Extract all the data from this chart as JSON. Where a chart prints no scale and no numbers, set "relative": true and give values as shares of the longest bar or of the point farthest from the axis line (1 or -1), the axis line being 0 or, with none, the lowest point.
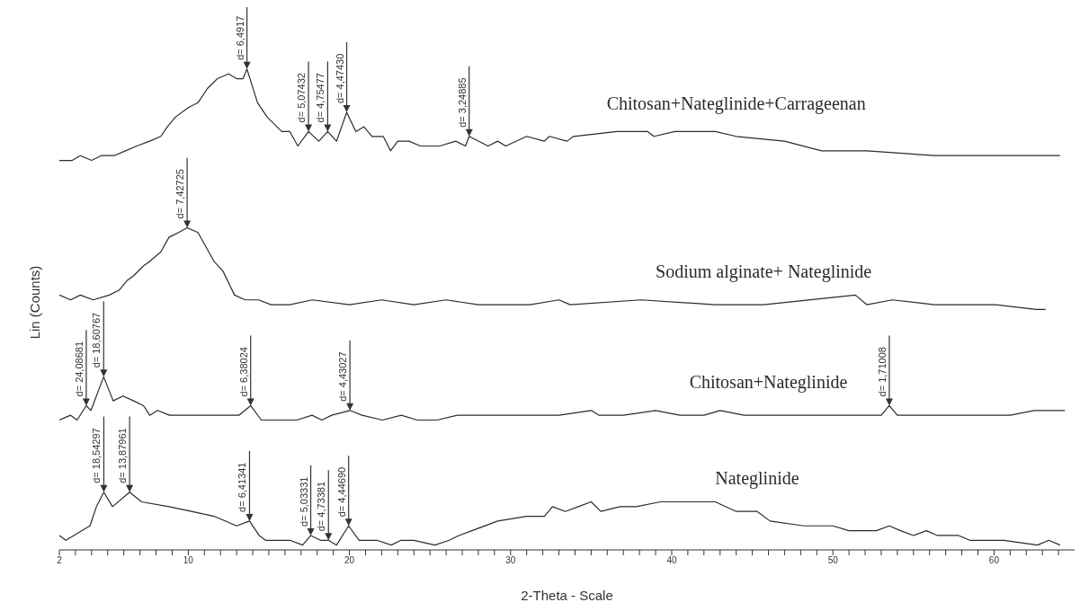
{
  "chart_data": {
    "type": "line",
    "relative": true,
    "xlabel": "2-Theta - Scale",
    "ylabel": "Lin (Counts)",
    "xlim": [
      2,
      65
    ],
    "xticks": [
      2,
      {
        "value": 3,
        "label": null
      },
      {
        "value": 4,
        "label": null
      },
      {
        "value": 5,
        "label": null
      },
      {
        "value": 6,
        "label": null
      },
      {
        "value": 7,
        "label": null
      },
      {
        "value": 8,
        "label": null
      },
      {
        "value": 9,
        "label": null
      },
      10,
      {
        "value": 11,
        "label": null
      },
      {
        "value": 12,
        "label": null
      },
      {
        "value": 13,
        "label": null
      },
      {
        "value": 14,
        "label": null
      },
      {
        "value": 15,
        "label": null
      },
      {
        "value": 16,
        "label": null
      },
      {
        "value": 17,
        "label": null
      },
      {
        "value": 18,
        "label": null
      },
      {
        "value": 19,
        "label": null
      },
      20,
      {
        "value": 21,
        "label": null
      },
      {
        "value": 22,
        "label": null
      },
      {
        "value": 23,
        "label": null
      },
      {
        "value": 24,
        "label": null
      },
      {
        "value": 25,
        "label": null
      },
      {
        "value": 26,
        "label": null
      },
      {
        "value": 27,
        "label": null
      },
      {
        "value": 28,
        "label": null
      },
      {
        "value": 29,
        "label": null
      },
      30,
      {
        "value": 31,
        "label": null
      },
      {
        "value": 32,
        "label": null
      },
      {
        "value": 33,
        "label": null
      },
      {
        "value": 34,
        "label": null
      },
      {
        "value": 35,
        "label": null
      },
      {
        "value": 36,
        "label": null
      },
      {
        "value": 37,
        "label": null
      },
      {
        "value": 38,
        "label": null
      },
      {
        "value": 39,
        "label": null
      },
      40,
      {
        "value": 41,
        "label": null
      },
      {
        "value": 42,
        "label": null
      },
      {
        "value": 43,
        "label": null
      },
      {
        "value": 44,
        "label": null
      },
      {
        "value": 45,
        "label": null
      },
      {
        "value": 46,
        "label": null
      },
      {
        "value": 47,
        "label": null
      },
      {
        "value": 48,
        "label": null
      },
      {
        "value": 49,
        "label": null
      },
      50,
      {
        "value": 51,
        "label": null
      },
      {
        "value": 52,
        "label": null
      },
      {
        "value": 53,
        "label": null
      },
      {
        "value": 54,
        "label": null
      },
      {
        "value": 55,
        "label": null
      },
      {
        "value": 56,
        "label": null
      },
      {
        "value": 57,
        "label": null
      },
      {
        "value": 58,
        "label": null
      },
      {
        "value": 59,
        "label": null
      },
      60,
      {
        "value": 61,
        "label": null
      },
      {
        "value": 62,
        "label": null
      },
      {
        "value": 63,
        "label": null
      },
      {
        "value": 64,
        "label": null
      }
    ],
    "series": [
      {
        "name": "Chitosan+Nateglinide+Carrageenan",
        "color": "#2b2b2b",
        "x": [
          2.0,
          2.8,
          3.3,
          4.0,
          4.6,
          5.4,
          6.1,
          6.8,
          7.6,
          8.3,
          8.7,
          9.2,
          10.0,
          10.6,
          11.2,
          11.8,
          12.5,
          13.0,
          13.4,
          13.64,
          14.3,
          14.9,
          15.8,
          16.3,
          16.8,
          17.46,
          18.1,
          18.65,
          19.2,
          19.83,
          20.4,
          20.9,
          21.4,
          22.1,
          22.55,
          23.0,
          23.7,
          24.4,
          25.6,
          26.6,
          27.2,
          27.43,
          28.6,
          29.2,
          29.7,
          31.0,
          32.1,
          32.4,
          33.5,
          33.9,
          36.6,
          38.5,
          38.9,
          40.2,
          41.5,
          42.7,
          44.0,
          47.0,
          49.3,
          52.1,
          56.3,
          60.5,
          64.1
        ],
        "values": [
          0.81,
          0.81,
          0.82,
          0.81,
          0.82,
          0.82,
          0.83,
          0.84,
          0.85,
          0.86,
          0.88,
          0.9,
          0.92,
          0.93,
          0.96,
          0.98,
          0.99,
          0.98,
          0.98,
          1.0,
          0.93,
          0.9,
          0.87,
          0.87,
          0.84,
          0.87,
          0.85,
          0.87,
          0.85,
          0.91,
          0.87,
          0.88,
          0.86,
          0.86,
          0.83,
          0.85,
          0.85,
          0.84,
          0.84,
          0.85,
          0.84,
          0.86,
          0.84,
          0.85,
          0.84,
          0.86,
          0.85,
          0.86,
          0.85,
          0.86,
          0.87,
          0.87,
          0.86,
          0.87,
          0.87,
          0.87,
          0.86,
          0.85,
          0.83,
          0.83,
          0.82,
          0.82,
          0.82
        ]
      },
      {
        "name": "Sodium alginate+ Nateglinide",
        "color": "#2b2b2b",
        "x": [
          2.0,
          2.7,
          3.3,
          4.1,
          5.1,
          5.7,
          6.2,
          6.6,
          7.2,
          7.6,
          8.3,
          8.8,
          9.4,
          9.93,
          10.6,
          11.6,
          12.15,
          12.87,
          13.53,
          14.36,
          15.14,
          16.3,
          17.7,
          20.0,
          22.0,
          24.0,
          26.0,
          28.0,
          31.2,
          33.0,
          33.7,
          38.1,
          42.7,
          45.7,
          51.4,
          52.1,
          53.7,
          56.3,
          60.1,
          62.6,
          63.2
        ],
        "values": [
          0.53,
          0.52,
          0.53,
          0.52,
          0.53,
          0.54,
          0.56,
          0.57,
          0.59,
          0.6,
          0.62,
          0.65,
          0.66,
          0.67,
          0.66,
          0.6,
          0.58,
          0.53,
          0.52,
          0.52,
          0.51,
          0.51,
          0.52,
          0.51,
          0.52,
          0.51,
          0.52,
          0.51,
          0.51,
          0.52,
          0.51,
          0.52,
          0.51,
          0.51,
          0.53,
          0.51,
          0.52,
          0.51,
          0.51,
          0.5,
          0.5
        ]
      },
      {
        "name": "Chitosan+Nateglinide",
        "color": "#2b2b2b",
        "x": [
          2.0,
          2.7,
          3.1,
          3.67,
          3.96,
          4.75,
          5.34,
          5.95,
          6.61,
          7.22,
          7.61,
          8.1,
          8.83,
          9.82,
          10.98,
          12.37,
          13.14,
          13.87,
          14.53,
          15.74,
          16.74,
          17.68,
          18.29,
          18.9,
          20.03,
          20.78,
          22.05,
          23.22,
          24.21,
          25.43,
          26.7,
          27.81,
          28.97,
          30.97,
          33.0,
          35.0,
          35.5,
          37.0,
          39.0,
          40.5,
          42.0,
          43.0,
          44.5,
          46.0,
          48.0,
          50.0,
          52.0,
          53.0,
          53.5,
          54.0,
          55.5,
          57.0,
          59.0,
          61.0,
          62.5,
          64.4
        ],
        "values": [
          0.27,
          0.28,
          0.27,
          0.3,
          0.29,
          0.36,
          0.31,
          0.32,
          0.31,
          0.3,
          0.28,
          0.29,
          0.28,
          0.28,
          0.28,
          0.28,
          0.28,
          0.3,
          0.27,
          0.27,
          0.27,
          0.28,
          0.27,
          0.28,
          0.29,
          0.28,
          0.27,
          0.28,
          0.27,
          0.27,
          0.28,
          0.28,
          0.28,
          0.28,
          0.28,
          0.29,
          0.28,
          0.28,
          0.29,
          0.28,
          0.28,
          0.29,
          0.28,
          0.28,
          0.28,
          0.28,
          0.28,
          0.28,
          0.3,
          0.28,
          0.28,
          0.28,
          0.28,
          0.28,
          0.29,
          0.29
        ]
      },
      {
        "name": "Nateglinide",
        "color": "#2b2b2b",
        "x": [
          2.0,
          2.4,
          2.9,
          3.4,
          3.9,
          4.3,
          4.76,
          5.3,
          6.36,
          7.1,
          8.8,
          10.2,
          11.6,
          13.0,
          13.8,
          14.4,
          14.8,
          16.3,
          17.1,
          17.6,
          18.2,
          18.7,
          19.2,
          19.95,
          20.6,
          21.7,
          22.6,
          23.2,
          24.0,
          25.3,
          26.2,
          26.8,
          27.6,
          29.2,
          31.0,
          32.1,
          32.6,
          33.4,
          34.2,
          35.0,
          35.6,
          36.8,
          37.8,
          39.3,
          40.2,
          41.5,
          42.7,
          44.0,
          45.3,
          46.1,
          48.2,
          49.5,
          50.0,
          51.0,
          52.1,
          52.7,
          53.5,
          54.2,
          55.0,
          55.8,
          56.5,
          57.8,
          58.5,
          60.6,
          62.7,
          63.4,
          64.1
        ],
        "values": [
          0.03,
          0.02,
          0.03,
          0.04,
          0.05,
          0.09,
          0.12,
          0.09,
          0.12,
          0.1,
          0.09,
          0.08,
          0.07,
          0.05,
          0.06,
          0.03,
          0.02,
          0.02,
          0.01,
          0.03,
          0.02,
          0.02,
          0.01,
          0.05,
          0.02,
          0.02,
          0.01,
          0.02,
          0.02,
          0.01,
          0.02,
          0.03,
          0.04,
          0.06,
          0.07,
          0.07,
          0.09,
          0.08,
          0.09,
          0.1,
          0.08,
          0.09,
          0.09,
          0.1,
          0.1,
          0.1,
          0.1,
          0.08,
          0.08,
          0.06,
          0.05,
          0.05,
          0.05,
          0.04,
          0.04,
          0.04,
          0.05,
          0.04,
          0.03,
          0.04,
          0.03,
          0.03,
          0.02,
          0.02,
          0.01,
          0.02,
          0.01
        ]
      }
    ],
    "annotations": [
      {
        "text": "d= 6,4917",
        "x": 13.64,
        "y": 1.0
      },
      {
        "text": "d= 5,07432",
        "x": 17.46,
        "y": 0.87
      },
      {
        "text": "d= 4,75477",
        "x": 18.65,
        "y": 0.87
      },
      {
        "text": "d= 4,47430",
        "x": 19.83,
        "y": 0.91
      },
      {
        "text": "d= 3,24885",
        "x": 27.43,
        "y": 0.86
      },
      {
        "text": "d= 7,42725",
        "x": 9.93,
        "y": 0.67
      },
      {
        "text": "d= 24,08681",
        "x": 3.67,
        "y": 0.3
      },
      {
        "text": "d= 18,60767",
        "x": 4.75,
        "y": 0.36
      },
      {
        "text": "d= 6,38024",
        "x": 13.87,
        "y": 0.3
      },
      {
        "text": "d= 4,43027",
        "x": 20.03,
        "y": 0.29
      },
      {
        "text": "d= 1,71008",
        "x": 53.5,
        "y": 0.3
      },
      {
        "text": "d= 18,54297",
        "x": 4.76,
        "y": 0.12
      },
      {
        "text": "d= 13,87961",
        "x": 6.36,
        "y": 0.12
      },
      {
        "text": "d= 6,41341",
        "x": 13.8,
        "y": 0.06
      },
      {
        "text": "d= 5,03331",
        "x": 17.6,
        "y": 0.03
      },
      {
        "text": "d= 4,73381",
        "x": 18.7,
        "y": 0.02
      },
      {
        "text": "d= 4,44690",
        "x": 19.95,
        "y": 0.05
      }
    ]
  }
}
